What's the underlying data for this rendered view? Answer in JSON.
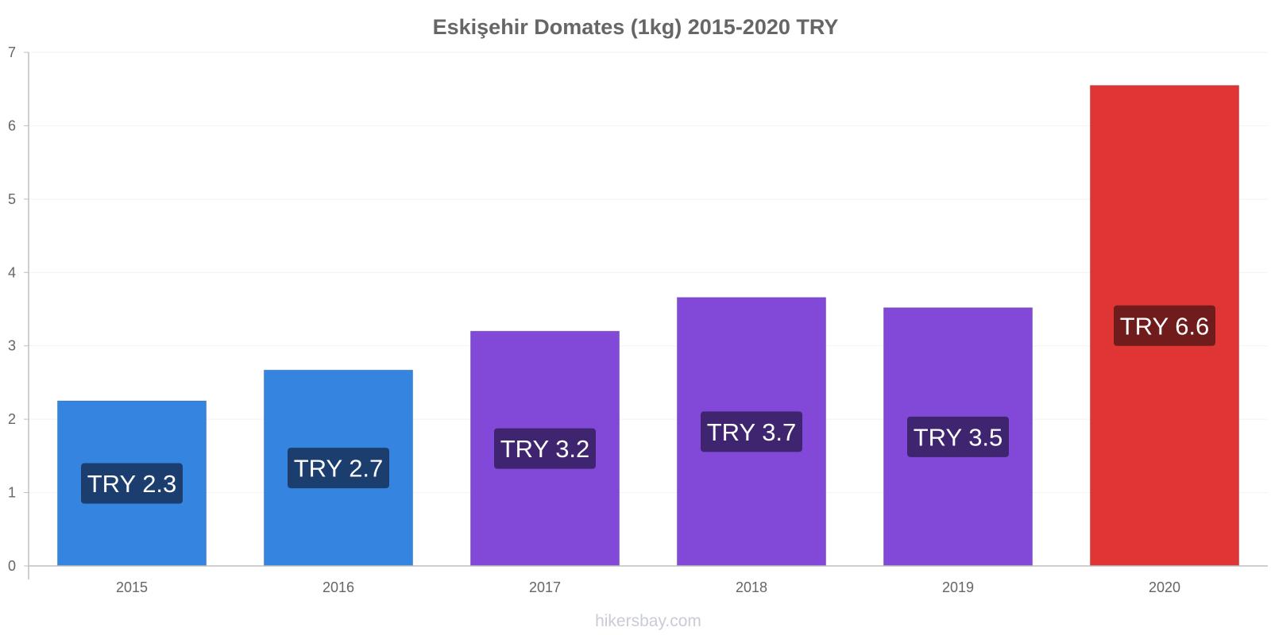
{
  "chart_data": {
    "type": "bar",
    "title": "Eskişehir Domates (1kg) 2015-2020 TRY",
    "categories": [
      "2015",
      "2016",
      "2017",
      "2018",
      "2019",
      "2020"
    ],
    "values": [
      2.25,
      2.67,
      3.2,
      3.66,
      3.52,
      6.55
    ],
    "labels": [
      "TRY 2.3",
      "TRY 2.7",
      "TRY 3.2",
      "TRY 3.7",
      "TRY 3.5",
      "TRY 6.6"
    ],
    "bar_colors": [
      "#3584e0",
      "#3584e0",
      "#8249d9",
      "#8249d9",
      "#8249d9",
      "#e03535"
    ],
    "label_colors": [
      "#1c3e6e",
      "#1c3e6e",
      "#3f2470",
      "#3f2470",
      "#3f2470",
      "#701c1c"
    ],
    "ylim": [
      0,
      7
    ],
    "yticks": [
      0,
      1,
      2,
      3,
      4,
      5,
      6,
      7
    ],
    "xlabel": "",
    "ylabel": "",
    "grid": true
  },
  "watermark": "hikersbay.com"
}
